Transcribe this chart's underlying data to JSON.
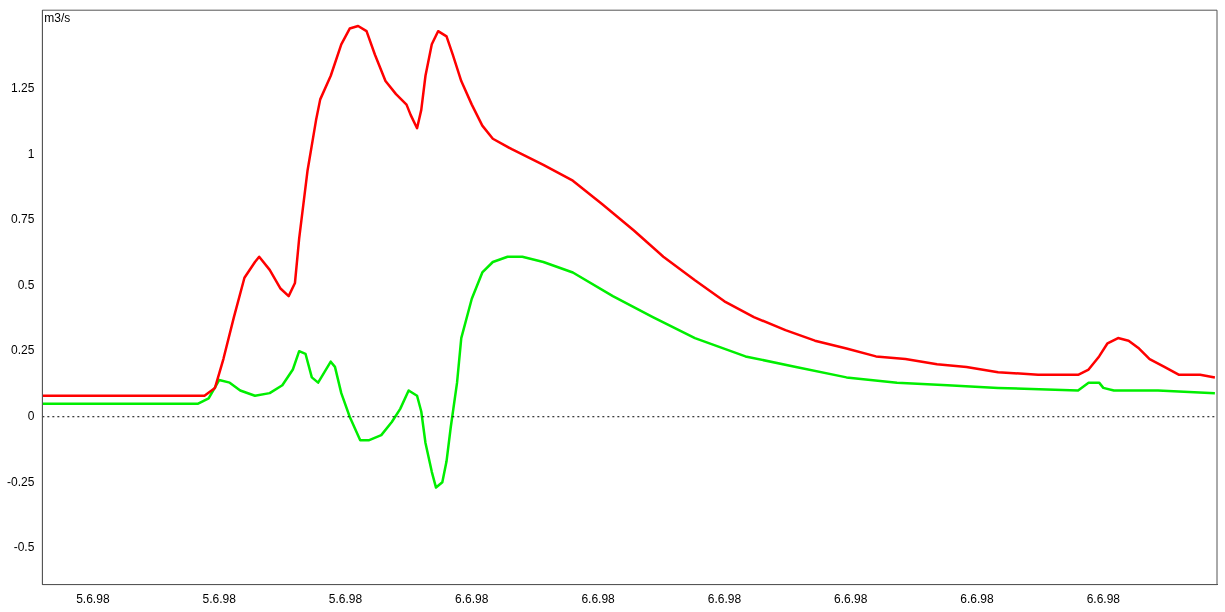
{
  "chart_data": {
    "type": "line",
    "ylabel": "m3/s",
    "xlim": [
      "1998-06-05T10:24",
      "1998-06-06T23:36"
    ],
    "ylim": [
      -0.64,
      1.55
    ],
    "xticks": [
      {
        "value": "1998-06-05T12:00",
        "label": "5.6.98"
      },
      {
        "value": "1998-06-05T16:00",
        "label": "5.6.98"
      },
      {
        "value": "1998-06-05T20:00",
        "label": "5.6.98"
      },
      {
        "value": "1998-06-06T00:00",
        "label": "6.6.98"
      },
      {
        "value": "1998-06-06T04:00",
        "label": "6.6.98"
      },
      {
        "value": "1998-06-06T08:00",
        "label": "6.6.98"
      },
      {
        "value": "1998-06-06T12:00",
        "label": "6.6.98"
      },
      {
        "value": "1998-06-06T16:00",
        "label": "6.6.98"
      },
      {
        "value": "1998-06-06T20:00",
        "label": "6.6.98"
      }
    ],
    "yticks": [
      -0.5,
      -0.25,
      0,
      0.25,
      0.5,
      0.75,
      1,
      1.25
    ],
    "grid": false,
    "legend": false,
    "marker": "none",
    "line_style": "solid",
    "ref_lines": [
      {
        "axis": "y",
        "value": 0,
        "color": "#000000",
        "line_style": "dotted"
      }
    ],
    "series": [
      {
        "color": "#ff0000",
        "x": [
          "1998-06-05T10:24",
          "1998-06-05T15:32",
          "1998-06-05T15:52",
          "1998-06-05T16:08",
          "1998-06-05T16:28",
          "1998-06-05T16:48",
          "1998-06-05T17:08",
          "1998-06-05T17:16",
          "1998-06-05T17:36",
          "1998-06-05T17:56",
          "1998-06-05T18:12",
          "1998-06-05T18:24",
          "1998-06-05T18:32",
          "1998-06-05T18:48",
          "1998-06-05T19:04",
          "1998-06-05T19:12",
          "1998-06-05T19:32",
          "1998-06-05T19:52",
          "1998-06-05T20:08",
          "1998-06-05T20:24",
          "1998-06-05T20:40",
          "1998-06-05T20:56",
          "1998-06-05T21:16",
          "1998-06-05T21:36",
          "1998-06-05T21:56",
          "1998-06-05T22:04",
          "1998-06-05T22:16",
          "1998-06-05T22:24",
          "1998-06-05T22:32",
          "1998-06-05T22:44",
          "1998-06-05T22:56",
          "1998-06-05T23:12",
          "1998-06-05T23:24",
          "1998-06-05T23:40",
          "1998-06-06T00:00",
          "1998-06-06T00:20",
          "1998-06-06T00:40",
          "1998-06-06T01:16",
          "1998-06-06T02:16",
          "1998-06-06T03:12",
          "1998-06-06T04:08",
          "1998-06-06T05:08",
          "1998-06-06T06:04",
          "1998-06-06T07:04",
          "1998-06-06T08:00",
          "1998-06-06T08:56",
          "1998-06-06T09:56",
          "1998-06-06T10:52",
          "1998-06-06T11:52",
          "1998-06-06T12:48",
          "1998-06-06T13:44",
          "1998-06-06T14:44",
          "1998-06-06T15:40",
          "1998-06-06T16:40",
          "1998-06-06T17:56",
          "1998-06-06T19:12",
          "1998-06-06T19:32",
          "1998-06-06T19:52",
          "1998-06-06T20:08",
          "1998-06-06T20:28",
          "1998-06-06T20:48",
          "1998-06-06T21:08",
          "1998-06-06T21:28",
          "1998-06-06T21:56",
          "1998-06-06T22:24",
          "1998-06-06T23:04",
          "1998-06-06T23:32"
        ],
        "values": [
          0.08,
          0.08,
          0.11,
          0.22,
          0.38,
          0.53,
          0.59,
          0.61,
          0.56,
          0.49,
          0.46,
          0.51,
          0.68,
          0.94,
          1.13,
          1.21,
          1.3,
          1.42,
          1.48,
          1.49,
          1.47,
          1.38,
          1.28,
          1.23,
          1.19,
          1.15,
          1.1,
          1.17,
          1.3,
          1.42,
          1.47,
          1.45,
          1.38,
          1.28,
          1.19,
          1.11,
          1.06,
          1.02,
          0.96,
          0.9,
          0.81,
          0.71,
          0.61,
          0.52,
          0.44,
          0.38,
          0.33,
          0.29,
          0.26,
          0.23,
          0.22,
          0.2,
          0.19,
          0.17,
          0.16,
          0.16,
          0.18,
          0.23,
          0.28,
          0.3,
          0.29,
          0.26,
          0.22,
          0.19,
          0.16,
          0.16,
          0.15
        ]
      },
      {
        "color": "#00ee00",
        "x": [
          "1998-06-05T10:24",
          "1998-06-05T15:20",
          "1998-06-05T15:40",
          "1998-06-05T16:00",
          "1998-06-05T16:20",
          "1998-06-05T16:40",
          "1998-06-05T17:08",
          "1998-06-05T17:36",
          "1998-06-05T18:00",
          "1998-06-05T18:20",
          "1998-06-05T18:32",
          "1998-06-05T18:44",
          "1998-06-05T18:56",
          "1998-06-05T19:08",
          "1998-06-05T19:20",
          "1998-06-05T19:32",
          "1998-06-05T19:40",
          "1998-06-05T19:52",
          "1998-06-05T20:08",
          "1998-06-05T20:28",
          "1998-06-05T20:44",
          "1998-06-05T21:08",
          "1998-06-05T21:28",
          "1998-06-05T21:44",
          "1998-06-05T22:00",
          "1998-06-05T22:16",
          "1998-06-05T22:24",
          "1998-06-05T22:32",
          "1998-06-05T22:44",
          "1998-06-05T22:52",
          "1998-06-05T23:04",
          "1998-06-05T23:12",
          "1998-06-05T23:20",
          "1998-06-05T23:32",
          "1998-06-05T23:40",
          "1998-06-06T00:00",
          "1998-06-06T00:20",
          "1998-06-06T00:40",
          "1998-06-06T01:08",
          "1998-06-06T01:36",
          "1998-06-06T02:16",
          "1998-06-06T03:12",
          "1998-06-06T04:28",
          "1998-06-06T05:44",
          "1998-06-06T07:04",
          "1998-06-06T08:40",
          "1998-06-06T10:16",
          "1998-06-06T11:52",
          "1998-06-06T13:28",
          "1998-06-06T15:04",
          "1998-06-06T16:40",
          "1998-06-06T19:12",
          "1998-06-06T19:32",
          "1998-06-06T19:52",
          "1998-06-06T20:00",
          "1998-06-06T20:20",
          "1998-06-06T20:48",
          "1998-06-06T21:44",
          "1998-06-06T23:32"
        ],
        "values": [
          0.05,
          0.05,
          0.07,
          0.14,
          0.13,
          0.1,
          0.08,
          0.09,
          0.12,
          0.18,
          0.25,
          0.24,
          0.15,
          0.13,
          0.17,
          0.21,
          0.19,
          0.09,
          0.0,
          -0.09,
          -0.09,
          -0.07,
          -0.02,
          0.03,
          0.1,
          0.08,
          0.02,
          -0.1,
          -0.21,
          -0.27,
          -0.25,
          -0.17,
          -0.04,
          0.13,
          0.3,
          0.45,
          0.55,
          0.59,
          0.61,
          0.61,
          0.59,
          0.55,
          0.46,
          0.38,
          0.3,
          0.23,
          0.19,
          0.15,
          0.13,
          0.12,
          0.11,
          0.1,
          0.13,
          0.13,
          0.11,
          0.1,
          0.1,
          0.1,
          0.09
        ]
      }
    ]
  }
}
